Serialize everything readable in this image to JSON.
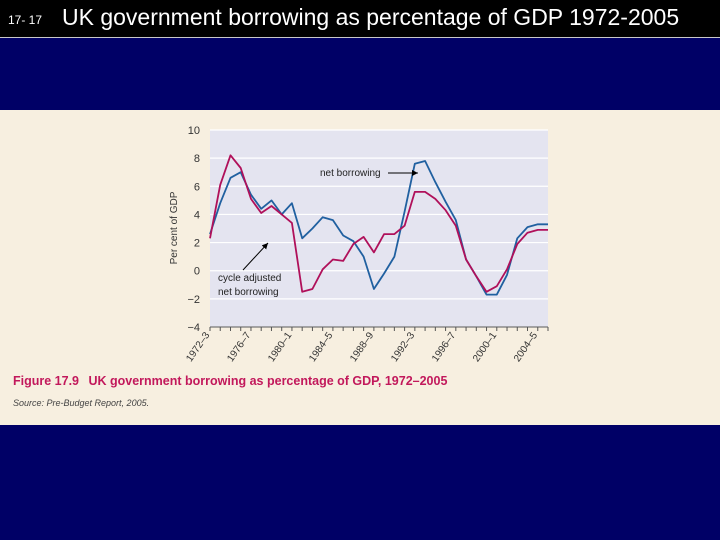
{
  "slide": {
    "number": "17- 17",
    "title": "UK government borrowing as percentage of GDP 1972-2005"
  },
  "figure": {
    "label": "Figure 17.9",
    "caption": "UK government borrowing as percentage of GDP, 1972–2005",
    "source": "Source: Pre-Budget Report, 2005."
  },
  "colors": {
    "net_borrowing": "#2060a0",
    "cycle_adjusted": "#b0105a",
    "grid": "#ffffff",
    "plot_bg": "#e4e4f0"
  },
  "chart_data": {
    "type": "line",
    "title": "",
    "xlabel": "",
    "ylabel": "Per cent of GDP",
    "ylim": [
      -4,
      10
    ],
    "yticks": [
      -4,
      -2,
      0,
      2,
      4,
      6,
      8,
      10
    ],
    "x": [
      "1972-3",
      "1973-4",
      "1974-5",
      "1975-6",
      "1976-7",
      "1977-8",
      "1978-9",
      "1979-80",
      "1980-1",
      "1981-2",
      "1982-3",
      "1983-4",
      "1984-5",
      "1985-6",
      "1986-7",
      "1987-8",
      "1988-9",
      "1989-90",
      "1990-1",
      "1991-2",
      "1992-3",
      "1993-4",
      "1994-5",
      "1995-6",
      "1996-7",
      "1997-8",
      "1998-9",
      "1999-00",
      "2000-1",
      "2001-2",
      "2002-3",
      "2003-4",
      "2004-5",
      "2005-6"
    ],
    "tick_labels": [
      "1972–3",
      "1976–7",
      "1980–1",
      "1984–5",
      "1988–9",
      "1992–3",
      "1996–7",
      "2000–1",
      "2004–5"
    ],
    "series": [
      {
        "name": "net borrowing",
        "values": [
          2.6,
          4.8,
          6.6,
          7.0,
          5.4,
          4.4,
          5.0,
          4.0,
          4.8,
          2.3,
          3.0,
          3.8,
          3.6,
          2.5,
          2.1,
          1.0,
          -1.3,
          -0.2,
          1.0,
          4.2,
          7.6,
          7.8,
          6.3,
          4.9,
          3.6,
          0.8,
          -0.4,
          -1.7,
          -1.7,
          -0.3,
          2.3,
          3.1,
          3.3,
          3.3
        ]
      },
      {
        "name": "cycle adjusted net borrowing",
        "values": [
          2.3,
          6.1,
          8.2,
          7.3,
          5.1,
          4.1,
          4.6,
          4.0,
          3.4,
          -1.5,
          -1.3,
          0.1,
          0.8,
          0.7,
          1.9,
          2.4,
          1.3,
          2.6,
          2.6,
          3.2,
          5.6,
          5.6,
          5.1,
          4.3,
          3.2,
          0.8,
          -0.4,
          -1.5,
          -1.1,
          0.1,
          1.9,
          2.7,
          2.9,
          2.9
        ]
      }
    ],
    "annotations": [
      {
        "text": "net borrowing",
        "series": "net borrowing"
      },
      {
        "text": "cycle adjusted",
        "series": "cycle adjusted net borrowing"
      },
      {
        "text": "net borrowing",
        "series": "cycle adjusted net borrowing"
      }
    ]
  }
}
